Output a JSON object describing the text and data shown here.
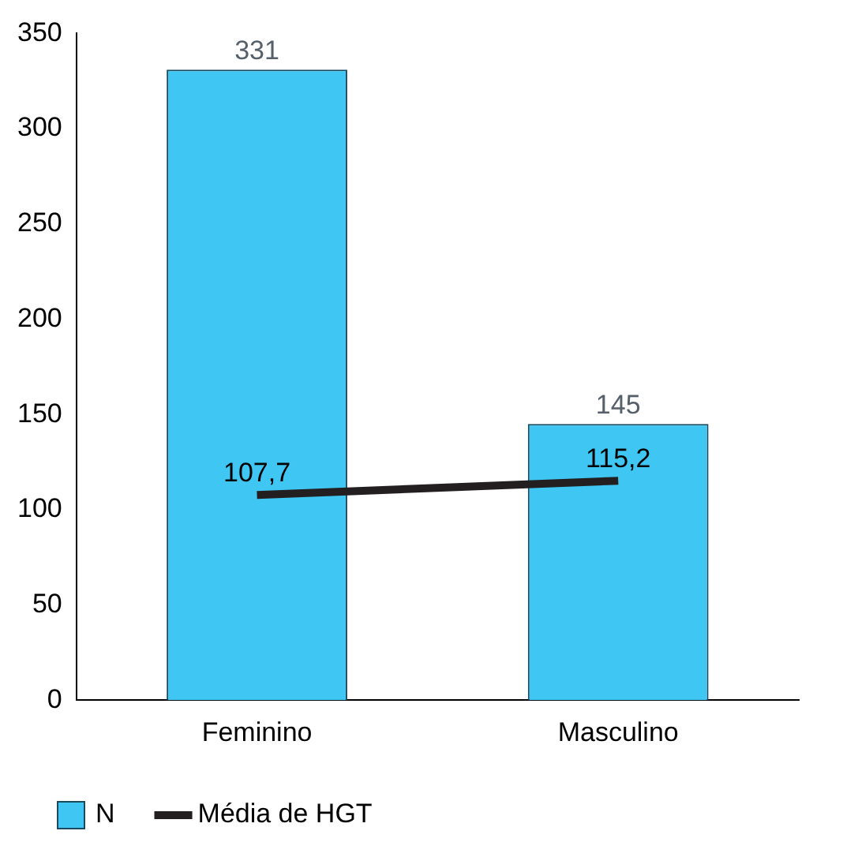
{
  "chart_data": {
    "type": "bar",
    "categories": [
      "Feminino",
      "Masculino"
    ],
    "series": [
      {
        "name": "N",
        "color": "#3fc6f2",
        "values": [
          331,
          145
        ],
        "value_labels": [
          "331",
          "145"
        ]
      },
      {
        "name": "Média de HGT",
        "type": "line",
        "color": "#231f20",
        "values": [
          107.7,
          115.2
        ],
        "value_labels": [
          "107,7",
          "115,2"
        ]
      }
    ],
    "ylim": [
      0,
      350
    ],
    "yticks": [
      0,
      50,
      100,
      150,
      200,
      250,
      300,
      350
    ],
    "grid": false,
    "legend": "bottom left",
    "marker": "none",
    "line_style": "solid"
  }
}
